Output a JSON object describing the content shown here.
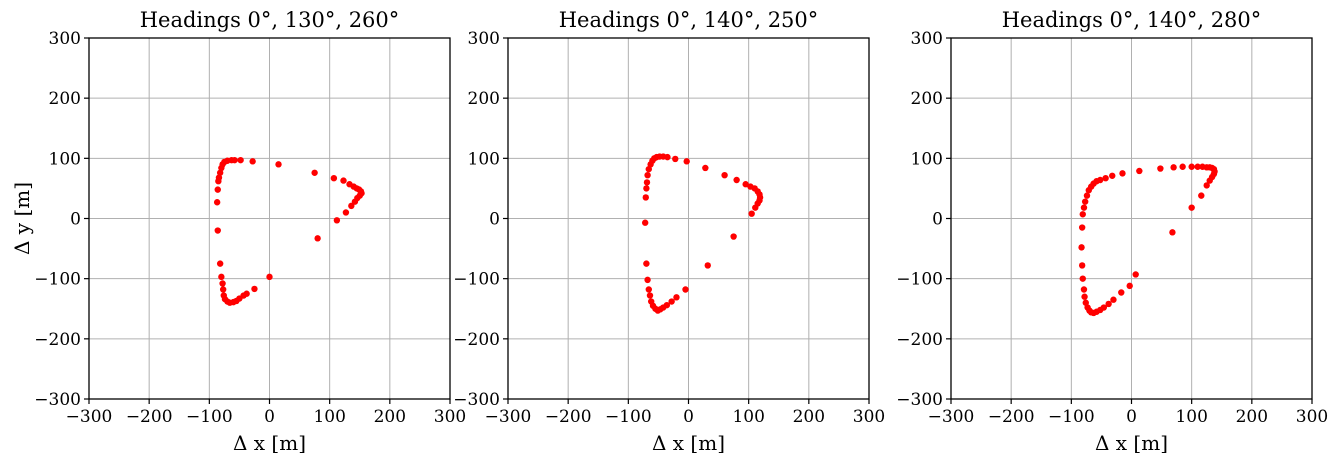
{
  "chart_data": [
    {
      "type": "scatter",
      "title": "Headings 0°, 130°, 260°",
      "xlabel": "Δ x [m]",
      "ylabel": "Δ y [m]",
      "xlim": [
        -300,
        300
      ],
      "ylim": [
        -300,
        300
      ],
      "xticks": [
        "−300",
        "−200",
        "−100",
        "0",
        "100",
        "200",
        "300"
      ],
      "yticks": [
        "300",
        "200",
        "100",
        "0",
        "−100",
        "−200",
        "−300"
      ],
      "grid": true,
      "marker_color": "#ff0000",
      "points": [
        [
          -63,
          97
        ],
        [
          -58,
          97
        ],
        [
          -48,
          97
        ],
        [
          -28,
          95
        ],
        [
          15,
          90
        ],
        [
          75,
          76
        ],
        [
          107,
          67
        ],
        [
          123,
          63
        ],
        [
          133,
          57
        ],
        [
          140,
          53
        ],
        [
          145,
          50
        ],
        [
          149,
          48
        ],
        [
          152,
          45
        ],
        [
          153,
          42
        ],
        [
          150,
          38
        ],
        [
          146,
          34
        ],
        [
          142,
          28
        ],
        [
          136,
          21
        ],
        [
          127,
          10
        ],
        [
          112,
          -3
        ],
        [
          80,
          -33
        ],
        [
          -70,
          96
        ],
        [
          -75,
          94
        ],
        [
          -78,
          90
        ],
        [
          -80,
          84
        ],
        [
          -82,
          76
        ],
        [
          -84,
          68
        ],
        [
          -85,
          62
        ],
        [
          -86,
          48
        ],
        [
          -87,
          27
        ],
        [
          -86,
          -20
        ],
        [
          -82,
          -75
        ],
        [
          -80,
          -97
        ],
        [
          -78,
          -108
        ],
        [
          -77,
          -118
        ],
        [
          -76,
          -128
        ],
        [
          -74,
          -134
        ],
        [
          -70,
          -138
        ],
        [
          -66,
          -140
        ],
        [
          -60,
          -139
        ],
        [
          -55,
          -137
        ],
        [
          -50,
          -133
        ],
        [
          -43,
          -128
        ],
        [
          -38,
          -125
        ],
        [
          -25,
          -117
        ],
        [
          0,
          -97
        ]
      ]
    },
    {
      "type": "scatter",
      "title": "Headings 0°, 140°, 250°",
      "xlabel": "Δ x [m]",
      "ylabel": "",
      "xlim": [
        -300,
        300
      ],
      "ylim": [
        -300,
        300
      ],
      "xticks": [
        "−300",
        "−200",
        "−100",
        "0",
        "100",
        "200",
        "300"
      ],
      "yticks": [
        "300",
        "200",
        "100",
        "0",
        "−100",
        "−200",
        "−300"
      ],
      "grid": true,
      "marker_color": "#ff0000",
      "points": [
        [
          -48,
          103
        ],
        [
          -42,
          103
        ],
        [
          -35,
          102
        ],
        [
          -22,
          99
        ],
        [
          -3,
          95
        ],
        [
          28,
          84
        ],
        [
          60,
          72
        ],
        [
          80,
          64
        ],
        [
          95,
          57
        ],
        [
          103,
          53
        ],
        [
          110,
          50
        ],
        [
          115,
          45
        ],
        [
          118,
          40
        ],
        [
          119,
          35
        ],
        [
          118,
          30
        ],
        [
          115,
          25
        ],
        [
          111,
          18
        ],
        [
          105,
          8
        ],
        [
          75,
          -30
        ],
        [
          32,
          -78
        ],
        [
          -53,
          102
        ],
        [
          -57,
          100
        ],
        [
          -60,
          96
        ],
        [
          -63,
          90
        ],
        [
          -66,
          82
        ],
        [
          -68,
          72
        ],
        [
          -69,
          60
        ],
        [
          -70,
          50
        ],
        [
          -71,
          35
        ],
        [
          -72,
          -7
        ],
        [
          -70,
          -75
        ],
        [
          -68,
          -102
        ],
        [
          -66,
          -118
        ],
        [
          -64,
          -128
        ],
        [
          -62,
          -138
        ],
        [
          -59,
          -145
        ],
        [
          -55,
          -150
        ],
        [
          -51,
          -153
        ],
        [
          -47,
          -151
        ],
        [
          -42,
          -148
        ],
        [
          -36,
          -144
        ],
        [
          -28,
          -138
        ],
        [
          -20,
          -131
        ],
        [
          -5,
          -118
        ]
      ]
    },
    {
      "type": "scatter",
      "title": "Headings 0°, 140°, 280°",
      "xlabel": "Δ x [m]",
      "ylabel": "",
      "xlim": [
        -300,
        300
      ],
      "ylim": [
        -300,
        300
      ],
      "xticks": [
        "−300",
        "−200",
        "−100",
        "0",
        "100",
        "200",
        "300"
      ],
      "yticks": [
        "300",
        "200",
        "100",
        "0",
        "−100",
        "−200",
        "−300"
      ],
      "grid": true,
      "marker_color": "#ff0000",
      "points": [
        [
          -52,
          64
        ],
        [
          -43,
          67
        ],
        [
          -32,
          71
        ],
        [
          -15,
          75
        ],
        [
          13,
          79
        ],
        [
          48,
          83
        ],
        [
          70,
          85
        ],
        [
          85,
          86
        ],
        [
          100,
          86
        ],
        [
          110,
          86
        ],
        [
          118,
          86
        ],
        [
          125,
          85
        ],
        [
          130,
          85
        ],
        [
          134,
          84
        ],
        [
          137,
          82
        ],
        [
          138,
          78
        ],
        [
          137,
          74
        ],
        [
          134,
          69
        ],
        [
          130,
          63
        ],
        [
          125,
          55
        ],
        [
          116,
          38
        ],
        [
          100,
          18
        ],
        [
          68,
          -23
        ],
        [
          7,
          -93
        ],
        [
          -58,
          62
        ],
        [
          -63,
          58
        ],
        [
          -67,
          53
        ],
        [
          -71,
          47
        ],
        [
          -74,
          38
        ],
        [
          -77,
          28
        ],
        [
          -79,
          18
        ],
        [
          -81,
          7
        ],
        [
          -82,
          -15
        ],
        [
          -83,
          -48
        ],
        [
          -82,
          -78
        ],
        [
          -81,
          -100
        ],
        [
          -79,
          -118
        ],
        [
          -78,
          -130
        ],
        [
          -76,
          -140
        ],
        [
          -73,
          -148
        ],
        [
          -70,
          -153
        ],
        [
          -67,
          -156
        ],
        [
          -63,
          -157
        ],
        [
          -58,
          -155
        ],
        [
          -52,
          -152
        ],
        [
          -46,
          -148
        ],
        [
          -38,
          -142
        ],
        [
          -30,
          -135
        ],
        [
          -17,
          -123
        ],
        [
          -3,
          -112
        ]
      ]
    }
  ]
}
